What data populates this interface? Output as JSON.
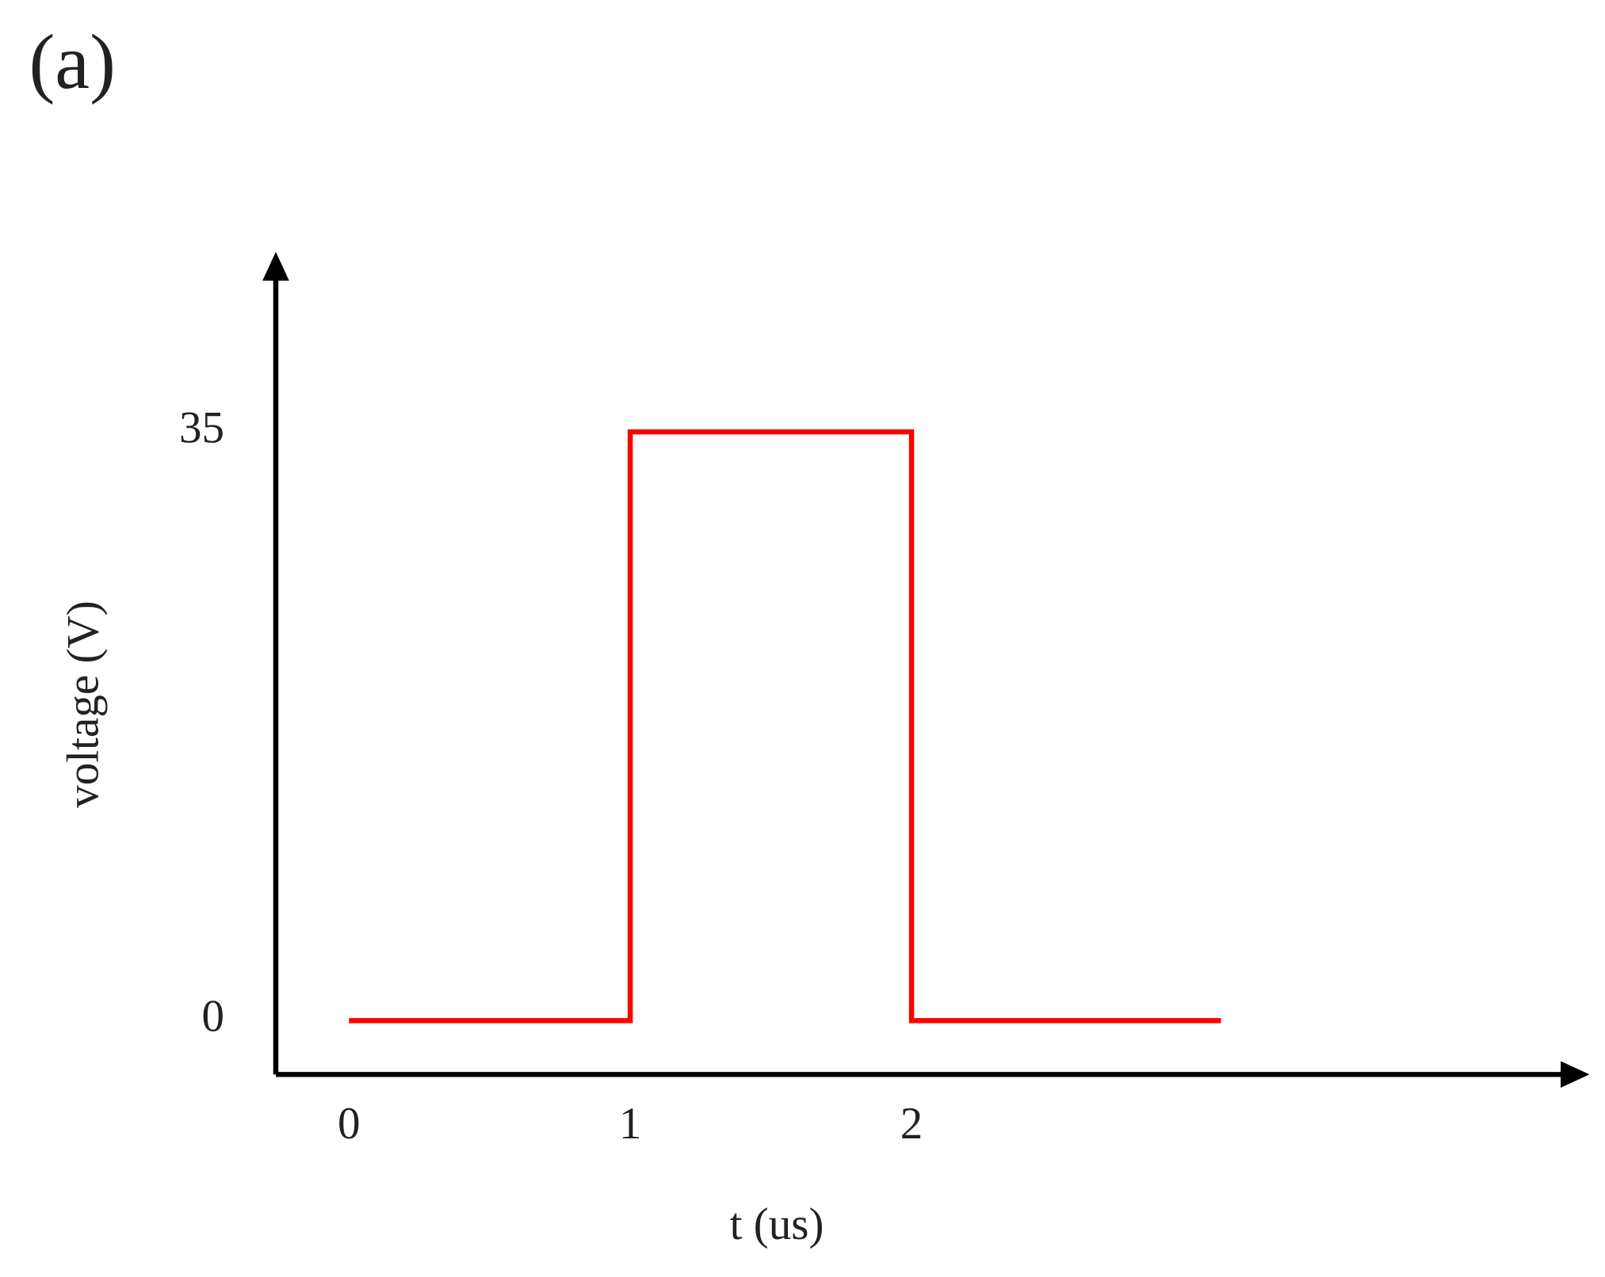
{
  "chart_data": {
    "type": "line",
    "panel_label": "(a)",
    "x_label": "t (us)",
    "y_label": "voltage (V)",
    "x": [
      0,
      1,
      1,
      2,
      2,
      3.1
    ],
    "series": [
      {
        "name": null,
        "color": "#ff0000",
        "values": [
          0,
          0,
          35,
          35,
          0,
          0
        ]
      }
    ],
    "xlim": [
      -0.26,
      4.41
    ],
    "ylim": [
      -3.2,
      45.7
    ],
    "xticks": [
      0,
      1,
      2
    ],
    "yticks": [
      0,
      35
    ],
    "grid": false
  }
}
